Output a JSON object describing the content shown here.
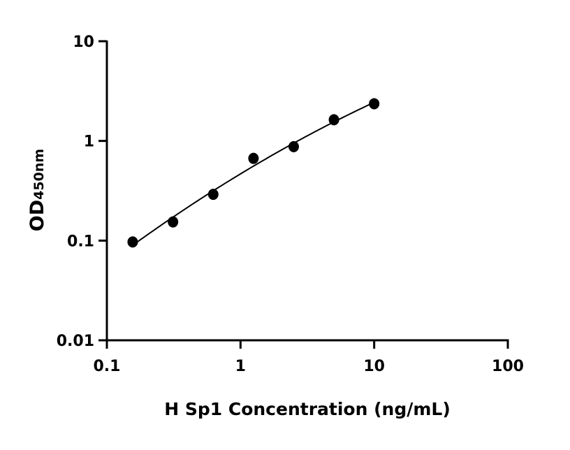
{
  "chart_data": {
    "type": "scatter",
    "title": "",
    "xlabel": "H Sp1 Concentration (ng/mL)",
    "ylabel_main": "OD",
    "ylabel_sub": "450nm",
    "xscale": "log",
    "yscale": "log",
    "xlim": [
      0.1,
      100
    ],
    "ylim": [
      0.01,
      10
    ],
    "xticks": [
      "0.1",
      "1",
      "10",
      "100"
    ],
    "yticks": [
      "0.01",
      "0.1",
      "1",
      "10"
    ],
    "grid": false,
    "fit_line": true,
    "point_color": "#000000",
    "series": [
      {
        "x": [
          0.156,
          0.3125,
          0.625,
          1.25,
          2.5,
          5,
          10
        ],
        "y": [
          0.097,
          0.154,
          0.291,
          0.668,
          0.876,
          1.63,
          2.36
        ]
      }
    ]
  }
}
